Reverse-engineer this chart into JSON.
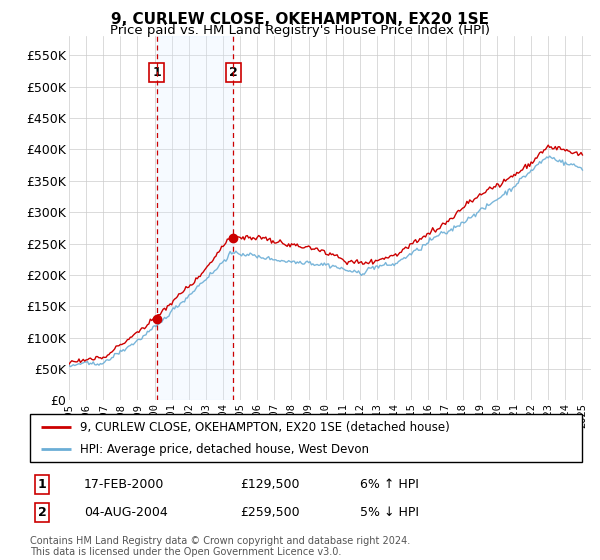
{
  "title": "9, CURLEW CLOSE, OKEHAMPTON, EX20 1SE",
  "subtitle": "Price paid vs. HM Land Registry's House Price Index (HPI)",
  "legend_line1": "9, CURLEW CLOSE, OKEHAMPTON, EX20 1SE (detached house)",
  "legend_line2": "HPI: Average price, detached house, West Devon",
  "transaction1_date": "17-FEB-2000",
  "transaction1_price": "£129,500",
  "transaction1_hpi": "6% ↑ HPI",
  "transaction2_date": "04-AUG-2004",
  "transaction2_price": "£259,500",
  "transaction2_hpi": "5% ↓ HPI",
  "footer": "Contains HM Land Registry data © Crown copyright and database right 2024.\nThis data is licensed under the Open Government Licence v3.0.",
  "hpi_color": "#6baed6",
  "price_color": "#CC0000",
  "marker_color": "#CC0000",
  "vline_color": "#CC0000",
  "shade_color": "#ddeeff",
  "background_color": "#ffffff",
  "grid_color": "#cccccc",
  "ylim": [
    0,
    580000
  ],
  "yticks": [
    0,
    50000,
    100000,
    150000,
    200000,
    250000,
    300000,
    350000,
    400000,
    450000,
    500000,
    550000
  ],
  "transaction1_x": 2000.12,
  "transaction2_x": 2004.59,
  "transaction1_y": 129500,
  "transaction2_y": 259500,
  "xmin": 1995,
  "xmax": 2025.5
}
